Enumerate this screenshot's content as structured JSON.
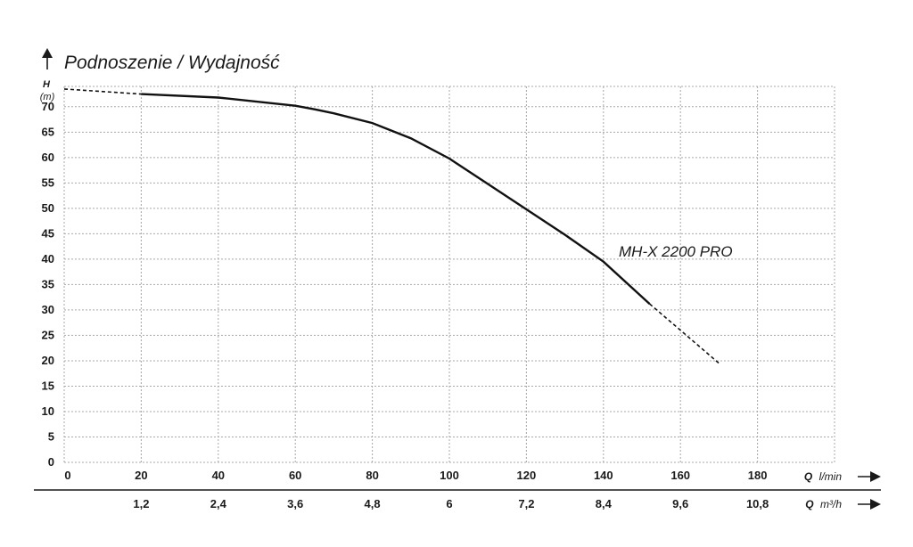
{
  "chart_data": {
    "type": "line",
    "title": "Podnoszenie / Wydajność",
    "ylabel": "H",
    "ylabel_unit": "(m)",
    "ylim": [
      0,
      74
    ],
    "yticks": [
      "0",
      "5",
      "10",
      "15",
      "20",
      "25",
      "30",
      "35",
      "40",
      "45",
      "50",
      "55",
      "60",
      "65",
      "70"
    ],
    "xlabel": "Q",
    "xlabel_unit": "l/min",
    "xlim": [
      0,
      200
    ],
    "xticks": [
      "0",
      "20",
      "40",
      "60",
      "80",
      "100",
      "120",
      "140",
      "160",
      "180"
    ],
    "x2label": "Q",
    "x2label_unit": "m³/h",
    "x2ticks": [
      "1,2",
      "2,4",
      "3,6",
      "4,8",
      "6",
      "7,2",
      "8,4",
      "9,6",
      "10,8"
    ],
    "grid": true,
    "series": [
      {
        "name": "MH-X 2200 PRO",
        "x": [
          0,
          20,
          40,
          60,
          65,
          70,
          80,
          90,
          100,
          110,
          120,
          130,
          140,
          152,
          160,
          170
        ],
        "y": [
          73.5,
          72.5,
          71.8,
          70.2,
          69.5,
          68.7,
          66.8,
          63.8,
          59.8,
          54.8,
          49.8,
          44.8,
          39.5,
          31.2,
          26.0,
          19.5
        ],
        "dashed_ranges": [
          [
            0,
            20
          ],
          [
            152,
            170
          ]
        ]
      }
    ]
  }
}
